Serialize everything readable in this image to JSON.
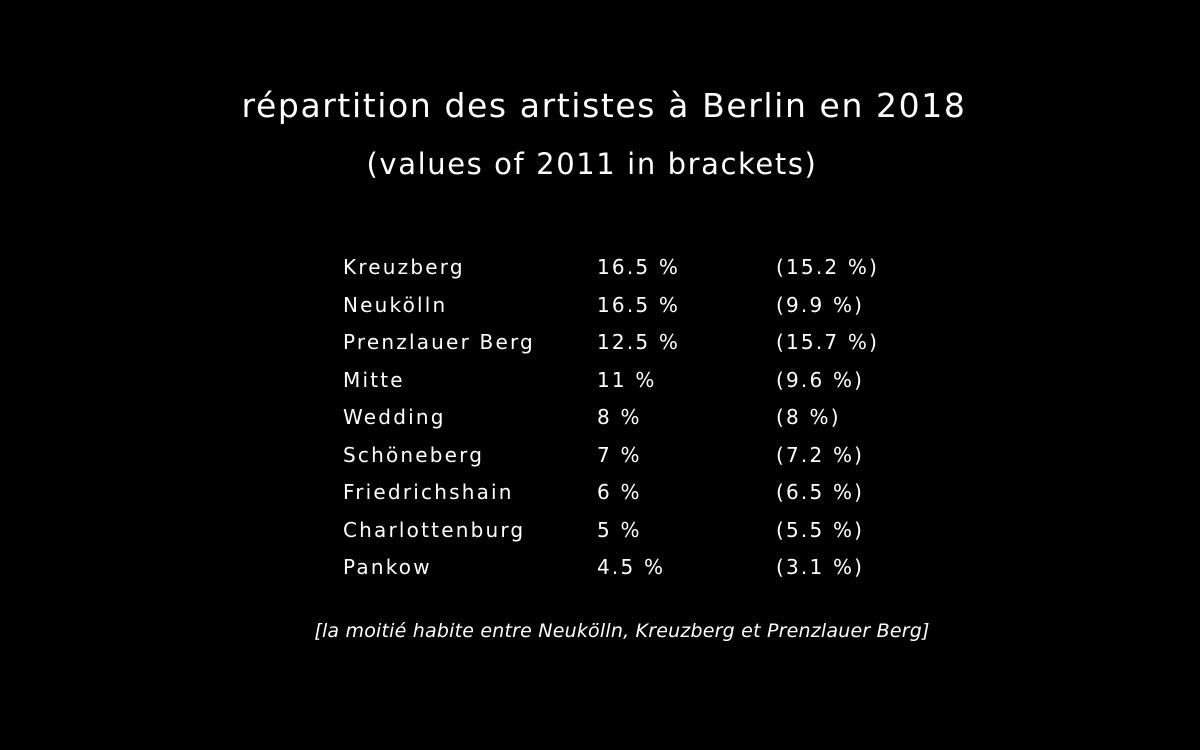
{
  "slide": {
    "title": "répartition des artistes à Berlin en 2018",
    "subtitle": "(values of 2011 in brackets)",
    "rows": [
      {
        "district": "Kreuzberg",
        "value_2018": "16.5 %",
        "value_2011": "(15.2 %)"
      },
      {
        "district": "Neukölln",
        "value_2018": "16.5 %",
        "value_2011": "(9.9 %)"
      },
      {
        "district": "Prenzlauer Berg",
        "value_2018": "12.5 %",
        "value_2011": "(15.7 %)"
      },
      {
        "district": "Mitte",
        "value_2018": "11 %",
        "value_2011": "(9.6 %)"
      },
      {
        "district": "Wedding",
        "value_2018": "8 %",
        "value_2011": "(8 %)"
      },
      {
        "district": "Schöneberg",
        "value_2018": "7 %",
        "value_2011": "(7.2 %)"
      },
      {
        "district": "Friedrichshain",
        "value_2018": "6 %",
        "value_2011": "(6.5 %)"
      },
      {
        "district": "Charlottenburg",
        "value_2018": "5 %",
        "value_2011": "(5.5 %)"
      },
      {
        "district": "Pankow",
        "value_2018": "4.5 %",
        "value_2011": "(3.1 %)"
      }
    ],
    "note": "[la moitié habite entre Neukölln, Kreuzberg et Prenzlauer Berg]",
    "colors": {
      "background": "#000000",
      "text": "#ffffff"
    }
  }
}
